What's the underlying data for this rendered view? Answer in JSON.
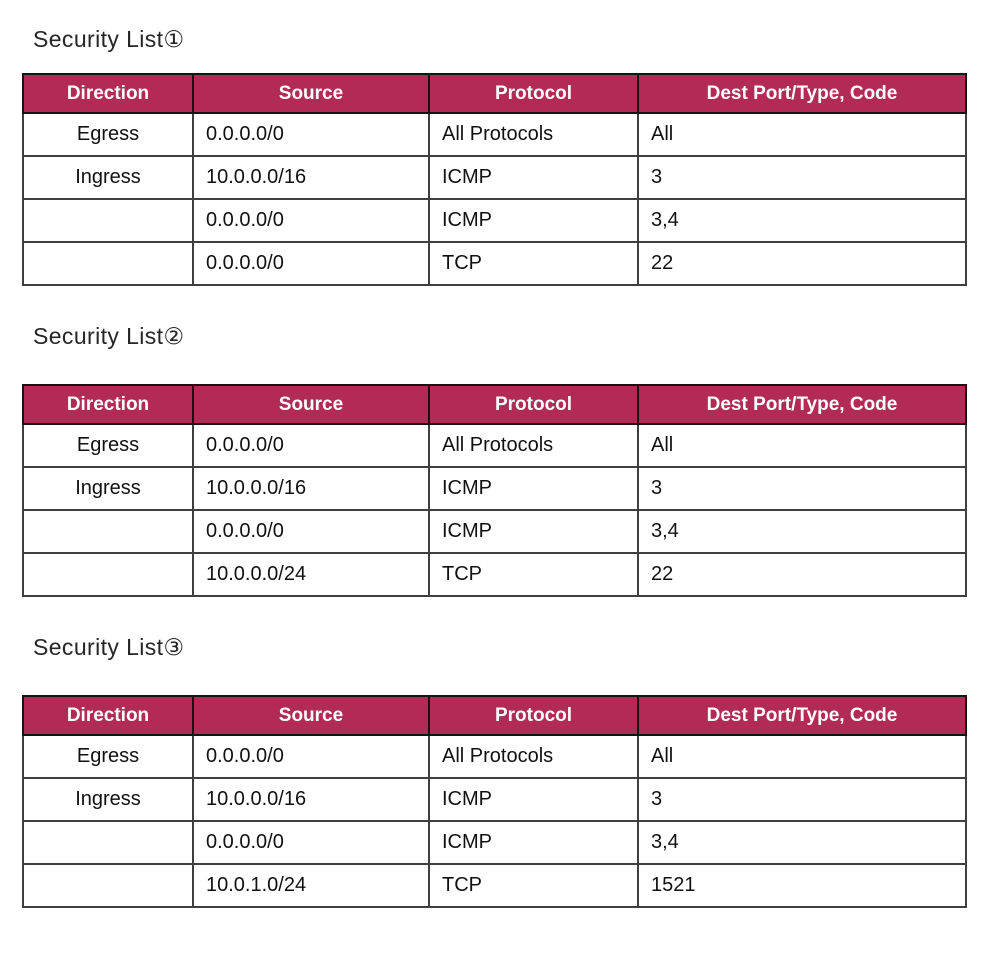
{
  "page": {
    "background": "#ffffff"
  },
  "colors": {
    "header_bg": "#B22B56",
    "header_text": "#ffffff",
    "body_text": "#111111",
    "title_text": "#262626",
    "border_outer": "#262626",
    "border_inner": "#3f3f3f",
    "border_header": "#141414"
  },
  "columns": [
    "Direction",
    "Source",
    "Protocol",
    "Dest Port/Type, Code"
  ],
  "tables": [
    {
      "title": "Security List①",
      "rows": [
        [
          "Egress",
          "0.0.0.0/0",
          "All Protocols",
          "All"
        ],
        [
          "Ingress",
          "10.0.0.0/16",
          "ICMP",
          "3"
        ],
        [
          "",
          "0.0.0.0/0",
          "ICMP",
          "3,4"
        ],
        [
          "",
          "0.0.0.0/0",
          "TCP",
          "22"
        ]
      ]
    },
    {
      "title": "Security List②",
      "rows": [
        [
          "Egress",
          "0.0.0.0/0",
          "All Protocols",
          "All"
        ],
        [
          "Ingress",
          "10.0.0.0/16",
          "ICMP",
          "3"
        ],
        [
          "",
          "0.0.0.0/0",
          "ICMP",
          "3,4"
        ],
        [
          "",
          "10.0.0.0/24",
          "TCP",
          "22"
        ]
      ]
    },
    {
      "title": "Security List③",
      "rows": [
        [
          "Egress",
          "0.0.0.0/0",
          "All Protocols",
          "All"
        ],
        [
          "Ingress",
          "10.0.0.0/16",
          "ICMP",
          "3"
        ],
        [
          "",
          "0.0.0.0/0",
          "ICMP",
          "3,4"
        ],
        [
          "",
          "10.0.1.0/24",
          "TCP",
          "1521"
        ]
      ]
    }
  ]
}
